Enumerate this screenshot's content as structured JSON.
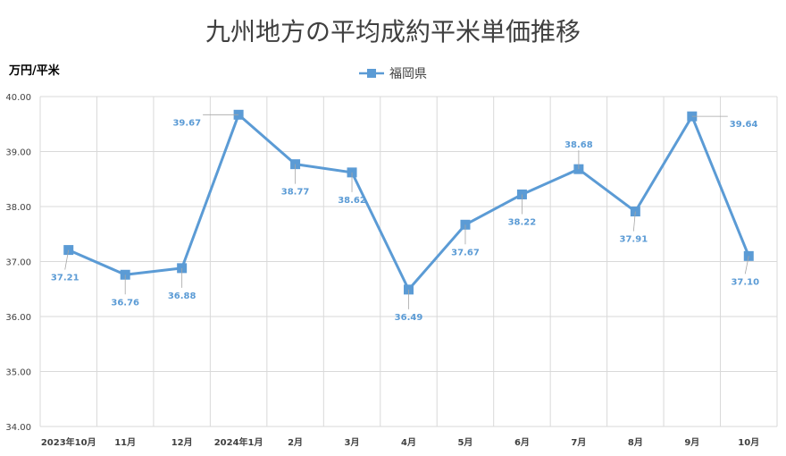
{
  "chart_data": {
    "type": "line",
    "title": "九州地方の平均成約平米単価推移",
    "ylabel": "万円/平米",
    "xlabel": "",
    "categories": [
      "2023年10月",
      "11月",
      "12月",
      "2024年1月",
      "2月",
      "3月",
      "4月",
      "5月",
      "6月",
      "7月",
      "8月",
      "9月",
      "10月"
    ],
    "series": [
      {
        "name": "福岡県",
        "values": [
          37.21,
          36.76,
          36.88,
          39.67,
          38.77,
          38.62,
          36.49,
          37.67,
          38.22,
          38.68,
          37.91,
          39.64,
          37.1
        ]
      }
    ],
    "data_labels": [
      "37.21",
      "36.76",
      "36.88",
      "39.67",
      "38.77",
      "38.62",
      "36.49",
      "37.67",
      "38.22",
      "38.68",
      "37.91",
      "39.64",
      "37.10"
    ],
    "ylim": [
      34.0,
      40.0
    ],
    "yticks": [
      "34.00",
      "35.00",
      "36.00",
      "37.00",
      "38.00",
      "39.00",
      "40.00"
    ],
    "grid": true,
    "legend_position": "top-center",
    "colors": {
      "series": "#5b9bd5",
      "grid": "#d9d9d9",
      "text": "#404040"
    }
  }
}
